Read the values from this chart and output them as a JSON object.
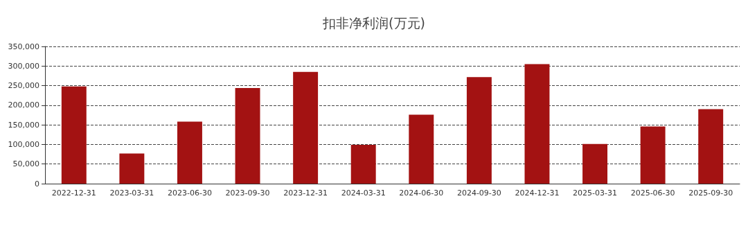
{
  "chart_data": {
    "type": "bar",
    "title": "扣非净利润(万元)",
    "categories": [
      "2022-12-31",
      "2023-03-31",
      "2023-06-30",
      "2023-09-30",
      "2023-12-31",
      "2024-03-31",
      "2024-06-30",
      "2024-09-30",
      "2024-12-31",
      "2025-03-31",
      "2025-06-30",
      "2025-09-30"
    ],
    "values": [
      248000,
      77000,
      158000,
      244000,
      285000,
      99000,
      176000,
      272000,
      305000,
      101000,
      146000,
      190000
    ],
    "color": "#a31212",
    "ylim": [
      0,
      350000
    ],
    "yticks": [
      {
        "value": 0,
        "label": "0"
      },
      {
        "value": 50000,
        "label": "50,000"
      },
      {
        "value": 100000,
        "label": "100,000"
      },
      {
        "value": 150000,
        "label": "150,000"
      },
      {
        "value": 200000,
        "label": "200,000"
      },
      {
        "value": 250000,
        "label": "250,000"
      },
      {
        "value": 300000,
        "label": "300,000"
      },
      {
        "value": 350000,
        "label": "350,000"
      }
    ],
    "grid": "y",
    "line_style": "dashed"
  }
}
